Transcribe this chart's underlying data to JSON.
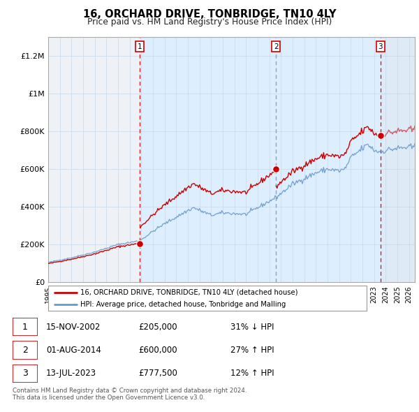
{
  "title": "16, ORCHARD DRIVE, TONBRIDGE, TN10 4LY",
  "subtitle": "Price paid vs. HM Land Registry's House Price Index (HPI)",
  "ylim": [
    0,
    1300000
  ],
  "yticks": [
    0,
    200000,
    400000,
    600000,
    800000,
    1000000,
    1200000
  ],
  "ytick_labels": [
    "£0",
    "£200K",
    "£400K",
    "£600K",
    "£800K",
    "£1M",
    "£1.2M"
  ],
  "s1_time": 2002.875,
  "s2_time": 2014.583,
  "s3_time": 2023.542,
  "s1_price": 205000,
  "s2_price": 600000,
  "s3_price": 777500,
  "legend_sale": "16, ORCHARD DRIVE, TONBRIDGE, TN10 4LY (detached house)",
  "legend_hpi": "HPI: Average price, detached house, Tonbridge and Malling",
  "table_rows": [
    [
      "1",
      "15-NOV-2002",
      "£205,000",
      "31% ↓ HPI"
    ],
    [
      "2",
      "01-AUG-2014",
      "£600,000",
      "27% ↑ HPI"
    ],
    [
      "3",
      "13-JUL-2023",
      "£777,500",
      "12% ↑ HPI"
    ]
  ],
  "footnote1": "Contains HM Land Registry data © Crown copyright and database right 2024.",
  "footnote2": "This data is licensed under the Open Government Licence v3.0.",
  "sale_color": "#cc0000",
  "hpi_color": "#6699cc",
  "bg_blue": "#ddeeff",
  "grid_color": "#ccddee",
  "xmin": 1995,
  "xmax": 2026.5
}
